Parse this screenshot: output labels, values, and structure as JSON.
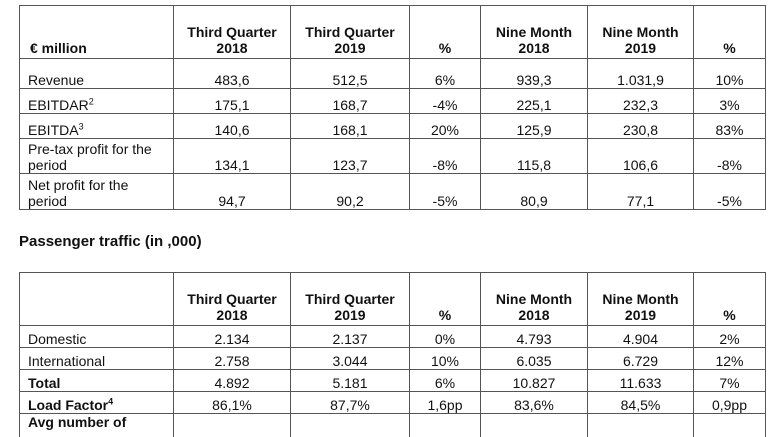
{
  "financials": {
    "unit_label": "€ million",
    "columns": [
      {
        "line1": "Third Quarter",
        "line2": "2018"
      },
      {
        "line1": "Third Quarter",
        "line2": "2019"
      },
      {
        "line1": "%",
        "line2": ""
      },
      {
        "line1": "Nine Month",
        "line2": "2018"
      },
      {
        "line1": "Nine Month",
        "line2": "2019"
      },
      {
        "line1": "%",
        "line2": ""
      }
    ],
    "rows": [
      {
        "label": "Revenue",
        "sup": "",
        "values": [
          "483,6",
          "512,5",
          "6%",
          "939,3",
          "1.031,9",
          "10%"
        ]
      },
      {
        "label": "EBITDAR",
        "sup": "2",
        "values": [
          "175,1",
          "168,7",
          "-4%",
          "225,1",
          "232,3",
          "3%"
        ]
      },
      {
        "label": "EBITDA",
        "sup": "3",
        "values": [
          "140,6",
          "168,1",
          "20%",
          "125,9",
          "230,8",
          "83%"
        ]
      },
      {
        "label": "Pre-tax profit for the period",
        "sup": "",
        "values": [
          "134,1",
          "123,7",
          "-8%",
          "115,8",
          "106,6",
          "-8%"
        ]
      },
      {
        "label": "Net profit for the period",
        "sup": "",
        "values": [
          "94,7",
          "90,2",
          "-5%",
          "80,9",
          "77,1",
          "-5%"
        ]
      }
    ]
  },
  "passenger_traffic": {
    "title": "Passenger traffic (in ,000)",
    "columns": [
      {
        "line1": "Third Quarter",
        "line2": "2018"
      },
      {
        "line1": "Third Quarter",
        "line2": "2019"
      },
      {
        "line1": "%",
        "line2": ""
      },
      {
        "line1": "Nine Month",
        "line2": "2018"
      },
      {
        "line1": "Nine Month",
        "line2": "2019"
      },
      {
        "line1": "",
        "line2": "%"
      }
    ],
    "rows": [
      {
        "label": "Domestic",
        "sup": "",
        "bold": false,
        "values": [
          "2.134",
          "2.137",
          "0%",
          "4.793",
          "4.904",
          "2%"
        ]
      },
      {
        "label": "International",
        "sup": "",
        "bold": false,
        "values": [
          "2.758",
          "3.044",
          "10%",
          "6.035",
          "6.729",
          "12%"
        ]
      },
      {
        "label": "Total",
        "sup": "",
        "bold": true,
        "values": [
          "4.892",
          "5.181",
          "6%",
          "10.827",
          "11.633",
          "7%"
        ]
      },
      {
        "label": "Load Factor",
        "sup": "4",
        "bold": true,
        "values": [
          "86,1%",
          "87,7%",
          "1,6pp",
          "83,6%",
          "84,5%",
          "0,9pp"
        ]
      },
      {
        "label": "Avg number of",
        "sup": "",
        "bold": true,
        "values": [
          "",
          "",
          "",
          "",
          "",
          ""
        ]
      }
    ]
  }
}
